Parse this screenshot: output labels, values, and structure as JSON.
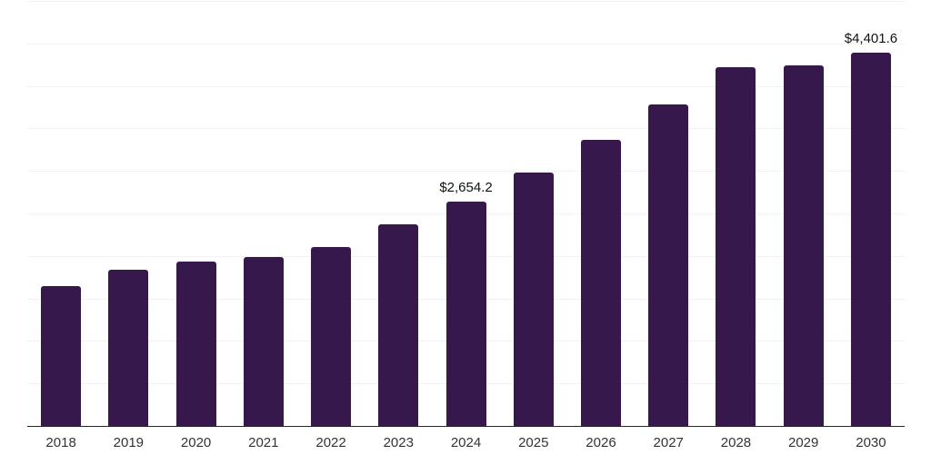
{
  "chart_data": {
    "type": "bar",
    "title": "",
    "xlabel": "",
    "ylabel": "",
    "categories": [
      "2018",
      "2019",
      "2020",
      "2021",
      "2022",
      "2023",
      "2024",
      "2025",
      "2026",
      "2027",
      "2028",
      "2029",
      "2030"
    ],
    "values": [
      1660,
      1845,
      1945,
      2000,
      2120,
      2380,
      2654.2,
      2990,
      3375,
      3790,
      4235,
      4255,
      4401.6
    ],
    "bar_labels": {
      "2024": "$2,654.2",
      "2030": "$4,401.6"
    },
    "ylim": [
      0,
      5000
    ],
    "gridline_step": 500,
    "grid": "horizontal-only",
    "legend": "none",
    "y_axis_tick_labels": "none",
    "colors": {
      "bar": "#36184c",
      "gridline": "#f2f2f2",
      "axis_line": "#262626",
      "x_tick_label": "#333333",
      "value_label": "#111111",
      "background": "#ffffff"
    }
  }
}
